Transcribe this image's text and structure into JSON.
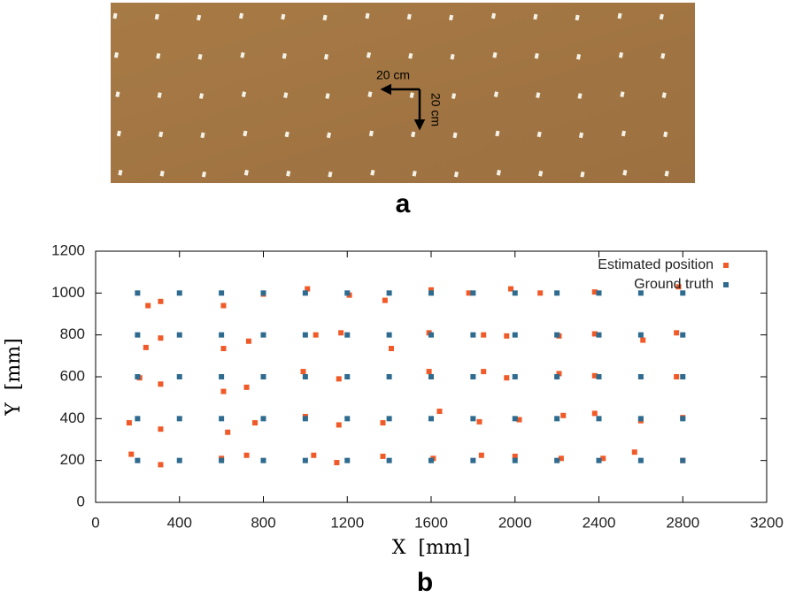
{
  "photo": {
    "horizontal_label": "20 cm",
    "vertical_label": "20 cm",
    "panel_label": "a"
  },
  "chart_data": {
    "type": "scatter",
    "panel_label": "b",
    "xlabel": "X  [mm]",
    "ylabel": "Y  [mm]",
    "xlim": [
      0,
      3200
    ],
    "xticks": [
      0,
      400,
      800,
      1200,
      1600,
      2000,
      2400,
      2800,
      3200
    ],
    "ylim": [
      0,
      1200
    ],
    "yticks": [
      0,
      200,
      400,
      600,
      800,
      1000,
      1200
    ],
    "grid": false,
    "legend": "upper right",
    "series": [
      {
        "name": "Estimated position",
        "color": "#f05a28",
        "x": [
          250,
          310,
          610,
          800,
          1010,
          1210,
          1380,
          1600,
          1780,
          1980,
          2120,
          2380,
          2780,
          240,
          310,
          610,
          730,
          1050,
          1170,
          1410,
          1590,
          1850,
          1960,
          2210,
          2380,
          2610,
          2770,
          210,
          310,
          610,
          720,
          990,
          1160,
          1590,
          1850,
          1960,
          2210,
          2380,
          2770,
          160,
          310,
          630,
          760,
          1000,
          1160,
          1370,
          1640,
          1830,
          2020,
          2230,
          2380,
          2600,
          2800,
          170,
          310,
          600,
          720,
          1040,
          1150,
          1370,
          1610,
          1840,
          2000,
          2220,
          2420,
          2570,
          2800
        ],
        "y": [
          940,
          960,
          940,
          995,
          1020,
          990,
          965,
          1015,
          1000,
          1020,
          1000,
          1005,
          1030,
          740,
          785,
          735,
          770,
          800,
          810,
          735,
          810,
          800,
          795,
          795,
          805,
          775,
          810,
          595,
          565,
          530,
          550,
          625,
          590,
          625,
          625,
          595,
          615,
          605,
          600,
          380,
          350,
          335,
          380,
          410,
          370,
          380,
          435,
          385,
          395,
          415,
          425,
          390,
          405,
          230,
          180,
          210,
          225,
          225,
          190,
          220,
          210,
          225,
          220,
          210,
          210,
          240,
          200
        ]
      },
      {
        "name": "Ground truth",
        "color": "#2e6b8f",
        "x": [
          200,
          400,
          600,
          800,
          1000,
          1200,
          1400,
          1600,
          1800,
          2000,
          2200,
          2400,
          2600,
          2800,
          200,
          400,
          600,
          800,
          1000,
          1200,
          1400,
          1600,
          1800,
          2000,
          2200,
          2400,
          2600,
          2800,
          200,
          400,
          600,
          800,
          1000,
          1200,
          1400,
          1600,
          1800,
          2000,
          2200,
          2400,
          2600,
          2800,
          200,
          400,
          600,
          800,
          1000,
          1200,
          1400,
          1600,
          1800,
          2000,
          2200,
          2400,
          2600,
          2800,
          200,
          400,
          600,
          800,
          1000,
          1200,
          1400,
          1600,
          1800,
          2000,
          2200,
          2400,
          2600,
          2800
        ],
        "y": [
          1000,
          1000,
          1000,
          1000,
          1000,
          1000,
          1000,
          1000,
          1000,
          1000,
          1000,
          1000,
          1000,
          1000,
          800,
          800,
          800,
          800,
          800,
          800,
          800,
          800,
          800,
          800,
          800,
          800,
          800,
          800,
          600,
          600,
          600,
          600,
          600,
          600,
          600,
          600,
          600,
          600,
          600,
          600,
          600,
          600,
          400,
          400,
          400,
          400,
          400,
          400,
          400,
          400,
          400,
          400,
          400,
          400,
          400,
          400,
          200,
          200,
          200,
          200,
          200,
          200,
          200,
          200,
          200,
          200,
          200,
          200,
          200,
          200
        ]
      }
    ]
  }
}
